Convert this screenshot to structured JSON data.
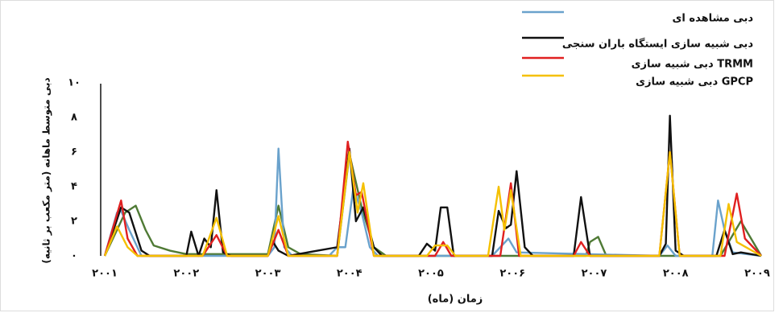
{
  "chart_data": {
    "type": "line",
    "xlabel": "زمان (ماه)",
    "ylabel": "دبی متوسط ماهانه (متر مکعب بر ثانیه)",
    "xlim": [
      2000.95,
      2009.05
    ],
    "ylim": [
      0,
      10
    ],
    "xticks": [
      {
        "value": 2001,
        "label": "۲۰۰۱"
      },
      {
        "value": 2002,
        "label": "۲۰۰۲"
      },
      {
        "value": 2003,
        "label": "۲۰۰۳"
      },
      {
        "value": 2004,
        "label": "۲۰۰۴"
      },
      {
        "value": 2005,
        "label": "۲۰۰۵"
      },
      {
        "value": 2006,
        "label": "۲۰۰۶"
      },
      {
        "value": 2007,
        "label": "۲۰۰۷"
      },
      {
        "value": 2008,
        "label": "۲۰۰۸"
      },
      {
        "value": 2009,
        "label": "۲۰۰۹"
      }
    ],
    "yticks": [
      {
        "value": 0,
        "label": "۰"
      },
      {
        "value": 2,
        "label": "۲"
      },
      {
        "value": 4,
        "label": "۴"
      },
      {
        "value": 6,
        "label": "۶"
      },
      {
        "value": 8,
        "label": "۸"
      },
      {
        "value": 10,
        "label": "۱۰"
      }
    ],
    "series": [
      {
        "color": "#4f7a35",
        "x": [
          2001.0,
          2001.25,
          2001.38,
          2001.5,
          2001.6,
          2001.8,
          2002.0,
          2003.0,
          2003.13,
          2003.25,
          2003.4,
          2003.85,
          2004.0,
          2004.15,
          2004.3,
          2004.45,
          2006.9,
          2006.95,
          2007.05,
          2007.15,
          2008.55,
          2008.8,
          2009.05
        ],
        "values": [
          0,
          2.5,
          2.9,
          1.5,
          0.6,
          0.3,
          0.1,
          0.1,
          2.9,
          0.5,
          0.1,
          0,
          5.9,
          2.8,
          0.5,
          0,
          0,
          0.8,
          1.1,
          0,
          0,
          2,
          0
        ]
      },
      {
        "name": "دبی مشاهده ای",
        "color": "#6aa2cc",
        "x": [
          2001.0,
          2001.15,
          2001.2,
          2001.3,
          2001.45,
          2003.0,
          2003.08,
          2003.13,
          2003.2,
          2003.3,
          2003.75,
          2003.85,
          2003.95,
          2004.05,
          2004.15,
          2004.25,
          2004.35,
          2005.75,
          2005.85,
          2005.95,
          2006.05,
          2007.8,
          2007.9,
          2008.0,
          2008.45,
          2008.52,
          2008.6,
          2008.7,
          2009.05
        ],
        "values": [
          0,
          2.5,
          2.6,
          1.5,
          0,
          0,
          0.5,
          6.2,
          0.5,
          0,
          0,
          0.5,
          0.5,
          4,
          2.5,
          0.5,
          0,
          0,
          0.5,
          1,
          0.2,
          0,
          0.6,
          0,
          0,
          3.2,
          1.5,
          0.2,
          0
        ]
      },
      {
        "name": "دبی شبیه سازی ایستگاه باران سنجی",
        "color": "#111111",
        "x": [
          2001.0,
          2001.2,
          2001.3,
          2001.45,
          2001.55,
          2002.0,
          2002.06,
          2002.15,
          2002.22,
          2002.3,
          2002.37,
          2002.45,
          2002.55,
          2003.0,
          2003.05,
          2003.13,
          2003.25,
          2003.85,
          2004.0,
          2004.08,
          2004.17,
          2004.3,
          2004.4,
          2004.85,
          2004.95,
          2005.05,
          2005.12,
          2005.2,
          2005.28,
          2005.75,
          2005.83,
          2005.92,
          2005.98,
          2006.05,
          2006.15,
          2006.25,
          2006.75,
          2006.84,
          2006.95,
          2007.8,
          2007.88,
          2007.93,
          2008.0,
          2008.1,
          2008.5,
          2008.6,
          2008.7,
          2008.8,
          2009.05
        ],
        "values": [
          0,
          2.8,
          2.5,
          0.3,
          0,
          0,
          1.4,
          0,
          1,
          0.5,
          3.8,
          0.2,
          0,
          0,
          0.9,
          0.3,
          0,
          0.5,
          6.2,
          2,
          2.8,
          0.5,
          0,
          0,
          0.7,
          0.3,
          2.8,
          2.8,
          0,
          0,
          2.6,
          1.6,
          1.8,
          4.9,
          0.5,
          0,
          0,
          3.4,
          0,
          0,
          0.7,
          8.1,
          0.3,
          0,
          0,
          1.5,
          0.1,
          0.2,
          0
        ]
      },
      {
        "name": "دبی شبیه سازی TRMM",
        "color": "#e02020",
        "x": [
          2001.0,
          2001.2,
          2001.28,
          2001.4,
          2002.2,
          2002.37,
          2002.5,
          2003.0,
          2003.13,
          2003.25,
          2003.85,
          2003.98,
          2004.08,
          2004.15,
          2004.3,
          2005.05,
          2005.15,
          2005.25,
          2005.85,
          2005.98,
          2006.08,
          2006.75,
          2006.84,
          2006.95,
          2007.8,
          2007.93,
          2008.05,
          2008.6,
          2008.75,
          2008.85,
          2009.05
        ],
        "values": [
          0,
          3.2,
          1,
          0,
          0,
          1.2,
          0,
          0,
          1.5,
          0,
          0,
          6.6,
          3.5,
          3.7,
          0,
          0,
          0.8,
          0,
          0,
          4.2,
          0,
          0,
          0.8,
          0,
          0,
          6,
          0,
          0,
          3.6,
          1,
          0
        ]
      },
      {
        "name": "دبی شبیه سازی GPCP",
        "color": "#f5c000",
        "x": [
          2001.0,
          2001.15,
          2001.28,
          2001.4,
          2002.2,
          2002.37,
          2002.5,
          2003.0,
          2003.13,
          2003.25,
          2003.85,
          2004.0,
          2004.1,
          2004.17,
          2004.3,
          2004.95,
          2005.05,
          2005.2,
          2005.3,
          2005.7,
          2005.83,
          2005.9,
          2005.98,
          2006.1,
          2007.8,
          2007.93,
          2008.05,
          2008.55,
          2008.65,
          2008.75,
          2009.05
        ],
        "values": [
          0,
          1.7,
          0.5,
          0,
          0,
          2.2,
          0,
          0,
          2.3,
          0,
          0,
          6,
          2.5,
          4.2,
          0,
          0,
          0.6,
          0.6,
          0,
          0,
          4,
          1.5,
          3.8,
          0,
          0,
          6,
          0,
          0,
          3,
          0.8,
          0
        ]
      }
    ]
  }
}
